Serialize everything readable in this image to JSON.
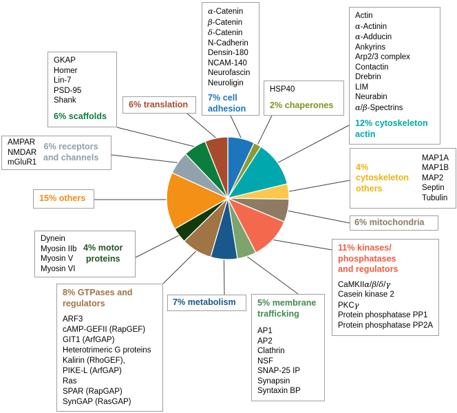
{
  "chart_data": {
    "type": "pie",
    "title": "",
    "start_angle_deg": 0,
    "direction": "clockwise",
    "categories": [
      "cell adhesion",
      "chaperones",
      "cytoskeleton actin",
      "cytoskeleton others",
      "mitochondria",
      "kinases/phosphatases and regulators",
      "membrane trafficking",
      "metabolism",
      "GTPases and regulators",
      "motor proteins",
      "others",
      "receptors and channels",
      "scaffolds",
      "translation"
    ],
    "values": [
      7,
      2,
      12,
      4,
      6,
      11,
      5,
      7,
      8,
      4,
      15,
      6,
      6,
      6
    ],
    "unit": "%",
    "colors": [
      "#1d76bb",
      "#8c9b31",
      "#00a8ae",
      "#fcc84b",
      "#8d7b64",
      "#f4684e",
      "#7ca46c",
      "#19588c",
      "#a07444",
      "#133a0d",
      "#f39015",
      "#92a2ac",
      "#0b7e3e",
      "#a84b2d"
    ],
    "legend_position": "around",
    "grid": false
  },
  "boxes": [
    {
      "id": "adhesion",
      "label": "7% cell\nadhesion",
      "label_color": "#1d76bb",
      "items": [
        "α-Catenin",
        "β-Catenin",
        "δ-Catenin",
        "N-Cadherin",
        "Densin-180",
        "NCAM-140",
        "Neurofascin",
        "Neuroligin"
      ]
    },
    {
      "id": "chaperones",
      "label": "2% chaperones",
      "label_color": "#819222",
      "items": [
        "HSP40"
      ]
    },
    {
      "id": "actin",
      "label": "12% cytoskeleton\nactin",
      "label_color": "#00a8ae",
      "items": [
        "Actin",
        "α-Actinin",
        "α-Adducin",
        "Ankyrins",
        "Arp2/3 complex",
        "Contactin",
        "Drebrin",
        "LIM",
        "Neurabin",
        "α/β-Spectrins"
      ]
    },
    {
      "id": "cyto_others",
      "label": "4%\ncytoskeleton\nothers",
      "label_color": "#eeb211",
      "items": [
        "MAP1A",
        "MAP1B",
        "MAP2",
        "Septin",
        "Tubulin"
      ]
    },
    {
      "id": "mitochondria",
      "label": "6% mitochondria",
      "label_color": "#8d7b64",
      "items": []
    },
    {
      "id": "kinases",
      "label": "11% kinases/\nphosphatases\nand regulators",
      "label_color": "#f15b40",
      "items": [
        "CaMKIIα/β/δ/γ",
        "Casein kinase 2",
        "PKCγ",
        "Protein phosphatase PP1",
        "Protein phosphatase PP2A"
      ]
    },
    {
      "id": "membrane",
      "label": "5% membrane\ntrafficking",
      "label_color": "#468a4e",
      "items": [
        "AP1",
        "AP2",
        "Clathrin",
        "NSF",
        "SNAP-25 IP",
        "Synapsin",
        "Syntaxin BP"
      ]
    },
    {
      "id": "metabolism",
      "label": "7% metabolism",
      "label_color": "#19588c",
      "items": []
    },
    {
      "id": "gtpases",
      "label": "8% GTPases and\nregulators",
      "label_color": "#a07444",
      "items": [
        "ARF3",
        "cAMP-GEFII (RapGEF)",
        "GIT1 (ArfGAP)",
        "Heterotrimeric G proteins",
        "Kalirin (RhoGEF),",
        "PIKE-L (ArfGAP)",
        "Ras",
        "SPAR (RapGAP)",
        "SynGAP (RasGAP)"
      ]
    },
    {
      "id": "motor",
      "label": "4% motor\nproteins",
      "label_color": "#1d5523",
      "items": [
        "Dynein",
        "Myosin IIb",
        "Myosin V",
        "Myosin VI"
      ]
    },
    {
      "id": "others",
      "label": "15% others",
      "label_color": "#f28d15",
      "items": []
    },
    {
      "id": "receptors",
      "label": "6% receptors\nand channels",
      "label_color": "#8fa0ab",
      "items": [
        "AMPAR",
        "NMDAR",
        "mGluR1"
      ]
    },
    {
      "id": "scaffolds",
      "label": "6% scaffolds",
      "label_color": "#0b7e3e",
      "items": [
        "GKAP",
        "Homer",
        "Lin-7",
        "PSD-95",
        "Shank"
      ]
    },
    {
      "id": "translation",
      "label": "6% translation",
      "label_color": "#a84b2d",
      "items": []
    }
  ]
}
